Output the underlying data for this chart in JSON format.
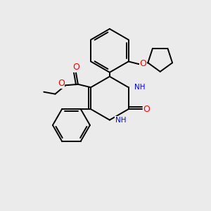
{
  "background_color": "#ebebeb",
  "bond_color": "#000000",
  "atom_colors": {
    "O": "#ff0000",
    "N": "#0000ff",
    "H_on_N": "#2aa0a0",
    "C": "#000000"
  },
  "figsize": [
    3.0,
    3.0
  ],
  "dpi": 100
}
